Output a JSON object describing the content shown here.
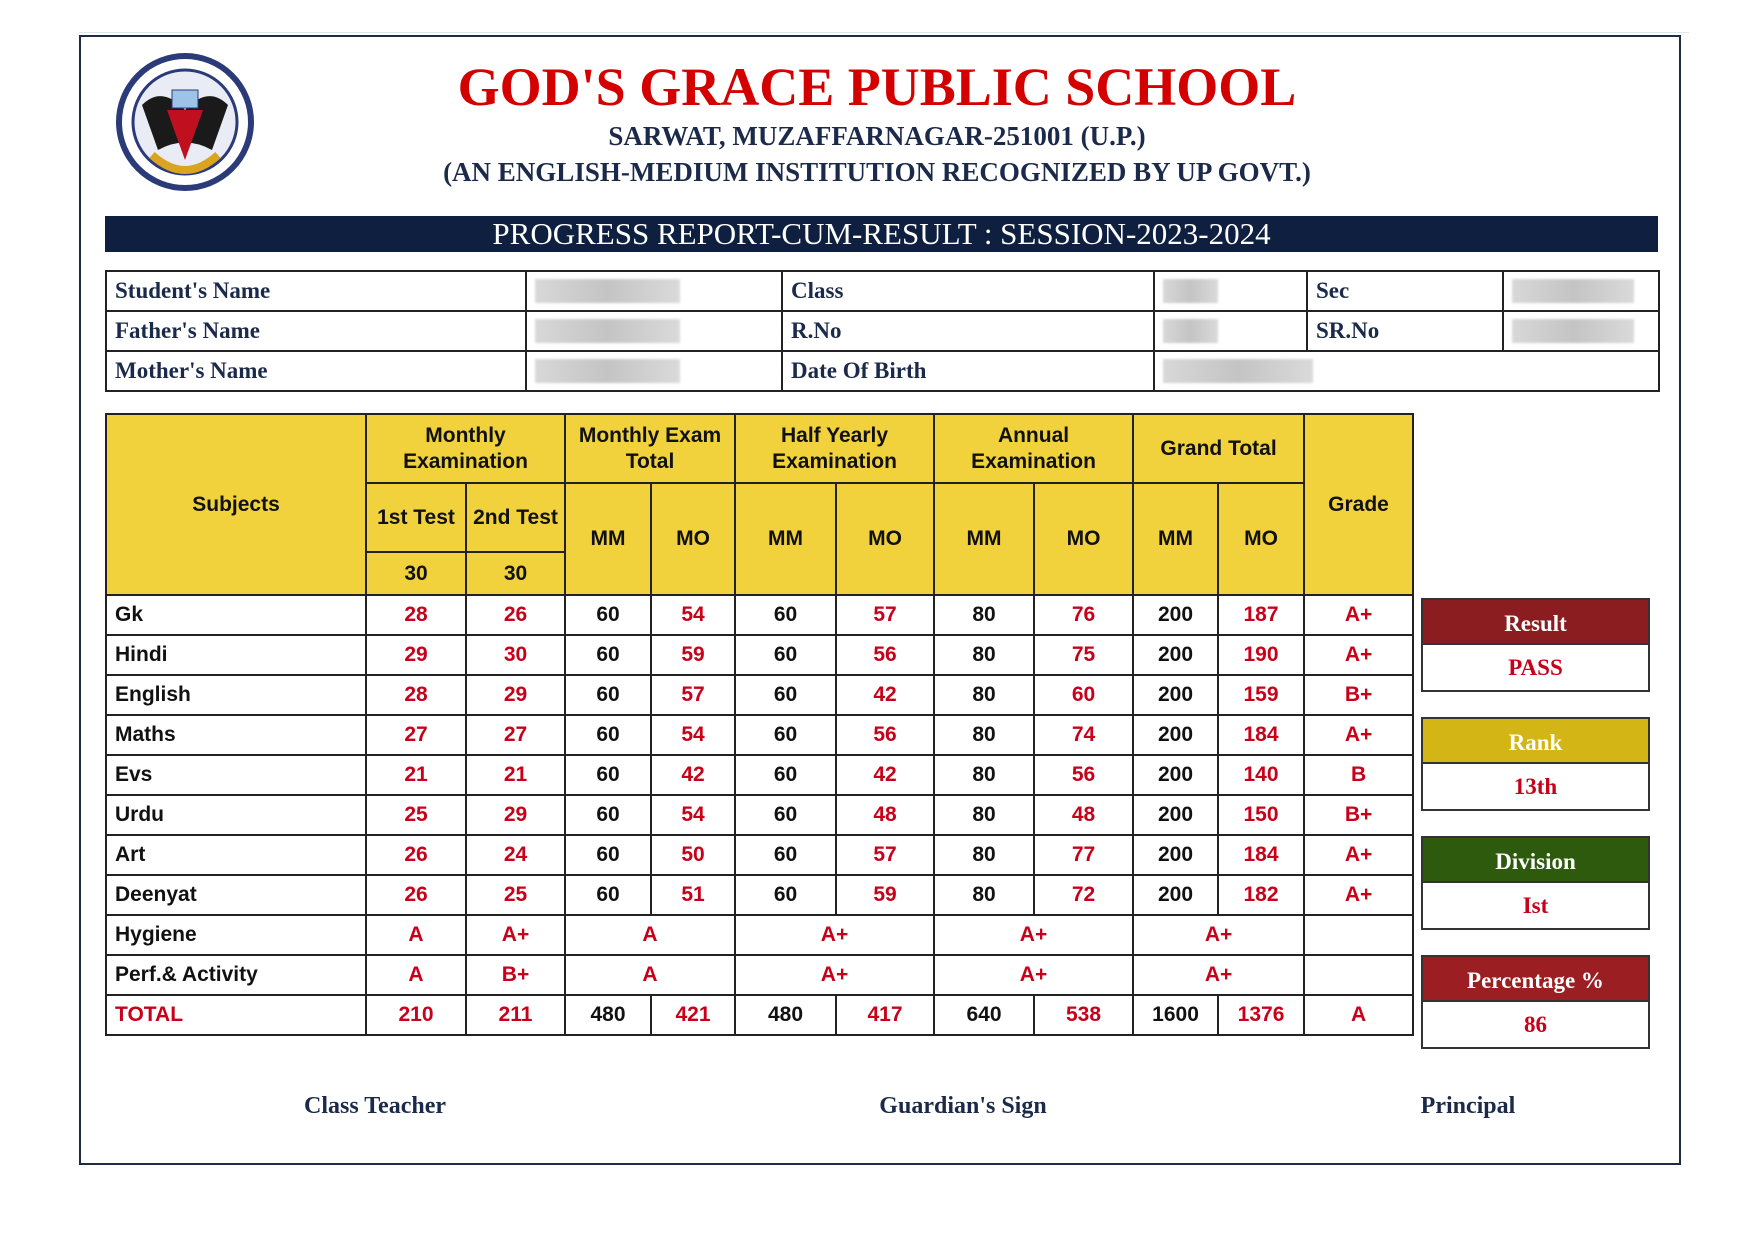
{
  "header": {
    "school_name": "GOD'S GRACE PUBLIC SCHOOL",
    "address": "SARWAT, MUZAFFARNAGAR-251001 (U.P.)",
    "recognition": "(AN ENGLISH-MEDIUM INSTITUTION RECOGNIZED BY UP GOVT.)"
  },
  "banner": "PROGRESS REPORT-CUM-RESULT : SESSION-2023-2024",
  "student_info": [
    [
      "Student's Name",
      "Class",
      "Sec"
    ],
    [
      "Father's Name",
      "R.No",
      "SR.No"
    ],
    [
      "Mother's Name",
      "Date Of Birth"
    ]
  ],
  "marks_table": {
    "subjects_header": "Subjects",
    "groups": [
      "Monthly Examination",
      "Monthly Exam Total",
      "Half Yearly Examination",
      "Annual Examination",
      "Grand Total"
    ],
    "grade_header": "Grade",
    "tests": [
      "1st Test",
      "2nd Test"
    ],
    "test_max": [
      30,
      30
    ],
    "mm": "MM",
    "mo": "MO",
    "rows": [
      {
        "subject": "Gk",
        "cells": [
          28,
          26,
          60,
          54,
          60,
          57,
          80,
          76,
          200,
          187,
          "A+"
        ]
      },
      {
        "subject": "Hindi",
        "cells": [
          29,
          30,
          60,
          59,
          60,
          56,
          80,
          75,
          200,
          190,
          "A+"
        ]
      },
      {
        "subject": "English",
        "cells": [
          28,
          29,
          60,
          57,
          60,
          42,
          80,
          60,
          200,
          159,
          "B+"
        ]
      },
      {
        "subject": "Maths",
        "cells": [
          27,
          27,
          60,
          54,
          60,
          56,
          80,
          74,
          200,
          184,
          "A+"
        ]
      },
      {
        "subject": "Evs",
        "cells": [
          21,
          21,
          60,
          42,
          60,
          42,
          80,
          56,
          200,
          140,
          "B"
        ]
      },
      {
        "subject": "Urdu",
        "cells": [
          25,
          29,
          60,
          54,
          60,
          48,
          80,
          48,
          200,
          150,
          "B+"
        ]
      },
      {
        "subject": "Art",
        "cells": [
          26,
          24,
          60,
          50,
          60,
          57,
          80,
          77,
          200,
          184,
          "A+"
        ]
      },
      {
        "subject": "Deenyat",
        "cells": [
          26,
          25,
          60,
          51,
          60,
          59,
          80,
          72,
          200,
          182,
          "A+"
        ]
      },
      {
        "subject": "Hygiene",
        "cells": [
          "A",
          "A+",
          "A",
          "A+",
          "A+",
          "A+"
        ]
      },
      {
        "subject": "Perf.& Activity",
        "cells": [
          "A",
          "B+",
          "A",
          "A+",
          "A+",
          "A+"
        ]
      },
      {
        "subject": "TOTAL",
        "cells": [
          210,
          211,
          480,
          421,
          480,
          417,
          640,
          538,
          1600,
          1376,
          "A"
        ]
      }
    ]
  },
  "summary": [
    {
      "label": "Result",
      "value": "PASS",
      "color": "#8b1c1f"
    },
    {
      "label": "Rank",
      "value": "13th",
      "color": "#d3b516"
    },
    {
      "label": "Division",
      "value": "Ist",
      "color": "#2e5a0e"
    },
    {
      "label": "Percentage %",
      "value": 86,
      "color": "#9b1e22"
    }
  ],
  "signatures": [
    "Class Teacher",
    "Guardian's Sign",
    "Principal"
  ]
}
